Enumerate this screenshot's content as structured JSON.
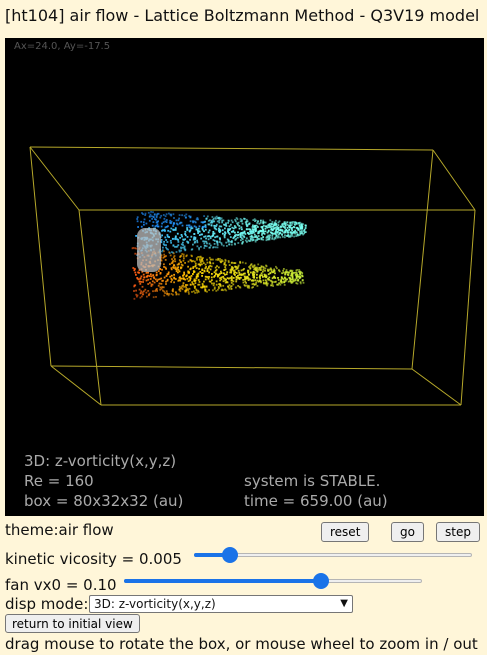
{
  "title": "[ht104] air flow - Lattice Boltzmann Method - Q3V19 model",
  "viewport": {
    "angle_readout": "Ax=24.0, Ay=-17.5",
    "display_mode_text": "3D: z-vorticity(x,y,z)",
    "reynolds": "Re = 160",
    "box_size": "box = 80x32x32 (au)",
    "system_status": "system is STABLE.",
    "time": "time = 659.00 (au)",
    "box_edge_color": "#b6a82a"
  },
  "controls": {
    "theme": "theme:air flow",
    "reset_label": "reset",
    "go_label": "go",
    "step_label": "step",
    "viscosity_label": "kinetic vicosity = 0.005",
    "viscosity_fraction": 0.13,
    "fan_label": "fan vx0 = 0.10",
    "fan_fraction": 0.66,
    "disp_mode_label": "disp mode:",
    "disp_mode_value": "3D: z-vorticity(x,y,z)",
    "return_label": "return to initial view",
    "hint": "drag mouse to rotate the box, or mouse wheel to zoom in / out"
  }
}
